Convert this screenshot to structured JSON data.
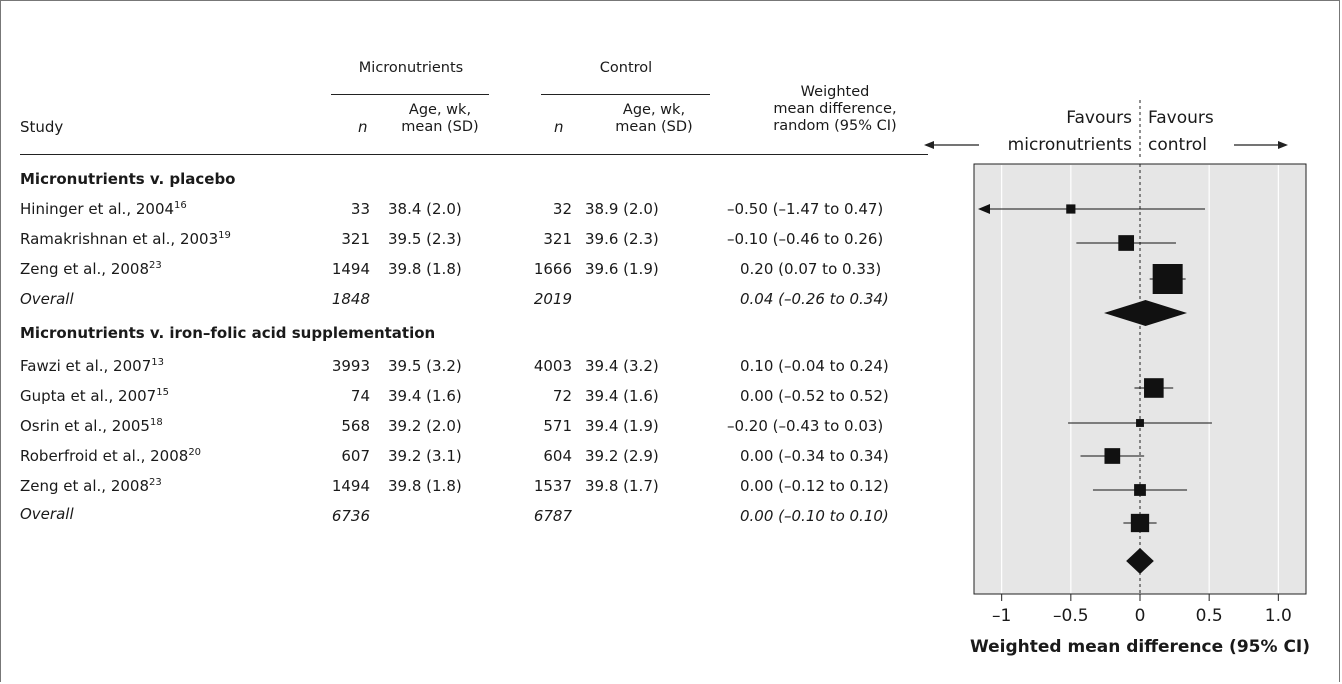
{
  "headers": {
    "study": "Study",
    "group_micro": "Micronutrients",
    "group_control": "Control",
    "n": "n",
    "age_line1": "Age, wk,",
    "age_line2": "mean (SD)",
    "wmd_line1": "Weighted",
    "wmd_line2": "mean difference,",
    "wmd_line3": "random (95% CI)"
  },
  "favours": {
    "left_line1": "Favours",
    "left_line2": "micronutrients",
    "right_line1": "Favours",
    "right_line2": "control"
  },
  "sections": [
    {
      "title": "Micronutrients v. placebo",
      "rows": [
        {
          "study": "Hininger et al., 2004",
          "ref": "16",
          "n1": "33",
          "age1": "38.4 (2.0)",
          "n2": "32",
          "age2": "38.9 (2.0)",
          "ci": "–0.50 (–1.47 to 0.47)"
        },
        {
          "study": "Ramakrishnan et al., 2003",
          "ref": "19",
          "n1": "321",
          "age1": "39.5 (2.3)",
          "n2": "321",
          "age2": "39.6 (2.3)",
          "ci": "–0.10 (–0.46 to 0.26)"
        },
        {
          "study": "Zeng et al., 2008",
          "ref": "23",
          "n1": "1494",
          "age1": "39.8 (1.8)",
          "n2": "1666",
          "age2": "39.6 (1.9)",
          "ci": "0.20 (0.07 to 0.33)"
        }
      ],
      "overall": {
        "label": "Overall",
        "n1": "1848",
        "n2": "2019",
        "ci": "0.04 (–0.26 to 0.34)"
      }
    },
    {
      "title": "Micronutrients v. iron–folic acid supplementation",
      "rows": [
        {
          "study": "Fawzi et al., 2007",
          "ref": "13",
          "n1": "3993",
          "age1": "39.5 (3.2)",
          "n2": "4003",
          "age2": "39.4 (3.2)",
          "ci": "0.10 (–0.04 to 0.24)"
        },
        {
          "study": "Gupta et al., 2007",
          "ref": "15",
          "n1": "74",
          "age1": "39.4 (1.6)",
          "n2": "72",
          "age2": "39.4 (1.6)",
          "ci": "0.00 (–0.52 to 0.52)"
        },
        {
          "study": "Osrin et al., 2005",
          "ref": "18",
          "n1": "568",
          "age1": "39.2 (2.0)",
          "n2": "571",
          "age2": "39.4 (1.9)",
          "ci": "–0.20 (–0.43 to 0.03)"
        },
        {
          "study": "Roberfroid et al., 2008",
          "ref": "20",
          "n1": "607",
          "age1": "39.2 (3.1)",
          "n2": "604",
          "age2": "39.2 (2.9)",
          "ci": "0.00 (–0.34 to 0.34)"
        },
        {
          "study": "Zeng et al., 2008",
          "ref": "23",
          "n1": "1494",
          "age1": "39.8 (1.8)",
          "n2": "1537",
          "age2": "39.8 (1.7)",
          "ci": "0.00 (–0.12 to 0.12)"
        }
      ],
      "overall": {
        "label": "Overall",
        "n1": "6736",
        "n2": "6787",
        "ci": "0.00 (–0.10 to 0.10)"
      }
    }
  ],
  "chart_data": {
    "type": "forest",
    "xlabel": "Weighted mean difference (95% CI)",
    "xlim": [
      -1.2,
      1.2
    ],
    "xticks": [
      -1,
      -0.5,
      0,
      0.5,
      1.0
    ],
    "xtick_labels": [
      "–1",
      "–0.5",
      "0",
      "0.5",
      "1.0"
    ],
    "reference_line": 0,
    "grid": true,
    "background": "#e6e6e6",
    "grid_color": "#ffffff",
    "studies": [
      {
        "label": "Hininger et al., 2004",
        "estimate": -0.5,
        "lower": -1.47,
        "upper": 0.47,
        "weight": 0.2,
        "lower_clipped": true
      },
      {
        "label": "Ramakrishnan et al., 2003",
        "estimate": -0.1,
        "lower": -0.46,
        "upper": 0.26,
        "weight": 0.45
      },
      {
        "label": "Zeng et al., 2008",
        "estimate": 0.2,
        "lower": 0.07,
        "upper": 0.33,
        "weight": 1.0
      },
      {
        "label": "Overall (placebo)",
        "estimate": 0.04,
        "lower": -0.26,
        "upper": 0.34,
        "overall": true
      },
      {
        "label": "Fawzi et al., 2007",
        "estimate": 0.1,
        "lower": -0.04,
        "upper": 0.24,
        "weight": 0.6
      },
      {
        "label": "Gupta et al., 2007",
        "estimate": 0.0,
        "lower": -0.52,
        "upper": 0.52,
        "weight": 0.15
      },
      {
        "label": "Osrin et al., 2005",
        "estimate": -0.2,
        "lower": -0.43,
        "upper": 0.03,
        "weight": 0.45
      },
      {
        "label": "Roberfroid et al., 2008",
        "estimate": 0.0,
        "lower": -0.34,
        "upper": 0.34,
        "weight": 0.3
      },
      {
        "label": "Zeng et al., 2008",
        "estimate": 0.0,
        "lower": -0.12,
        "upper": 0.12,
        "weight": 0.55
      },
      {
        "label": "Overall (iron–folic acid)",
        "estimate": 0.0,
        "lower": -0.1,
        "upper": 0.1,
        "overall": true
      }
    ]
  }
}
